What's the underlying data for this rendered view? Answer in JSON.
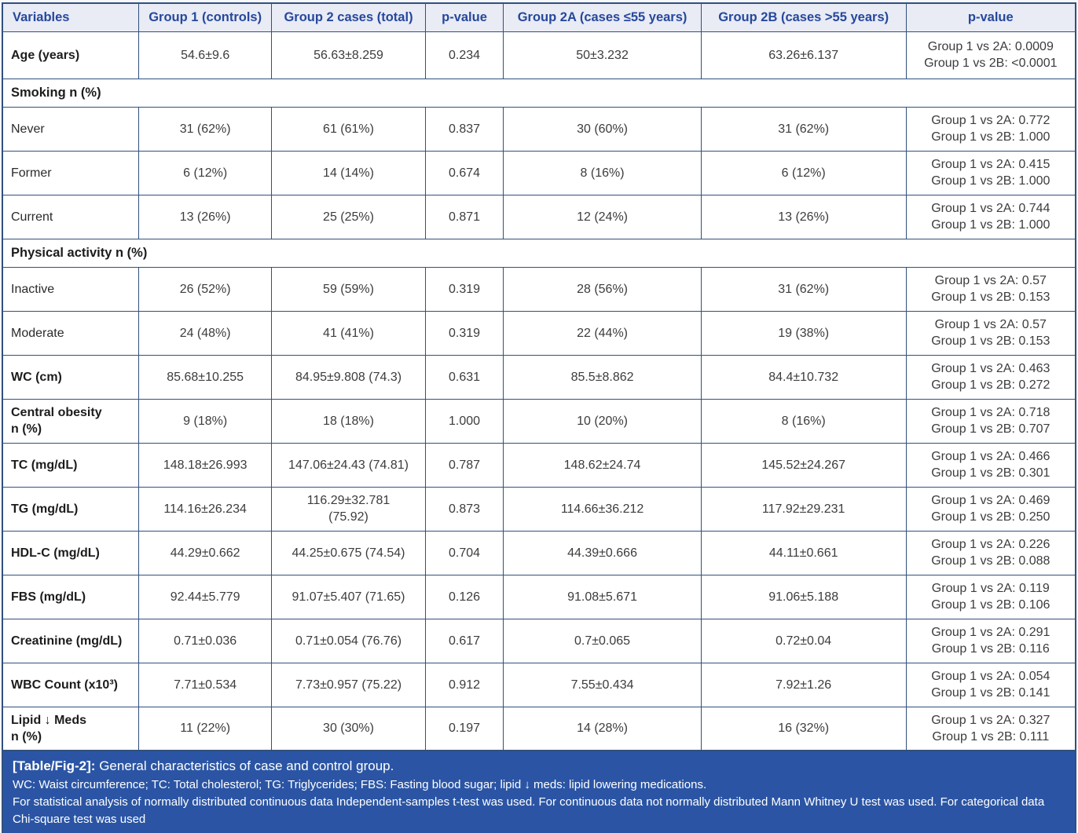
{
  "table": {
    "columns": [
      {
        "label": "Variables"
      },
      {
        "label": "Group 1 (controls)"
      },
      {
        "label": "Group 2 cases (total)"
      },
      {
        "label": "p-value"
      },
      {
        "label": "Group 2A (cases ≤55 years)"
      },
      {
        "label": "Group 2B (cases >55 years)"
      },
      {
        "label": "p-value"
      }
    ],
    "rows": [
      {
        "type": "data",
        "bold": true,
        "tall": true,
        "cells": [
          "Age (years)",
          "54.6±9.6",
          "56.63±8.259",
          "0.234",
          "50±3.232",
          "63.26±6.137",
          "Group 1 vs 2A: 0.0009\nGroup 1 vs 2B: <0.0001"
        ]
      },
      {
        "type": "section",
        "label": "Smoking n (%)"
      },
      {
        "type": "data",
        "bold": false,
        "cells": [
          "Never",
          "31 (62%)",
          "61 (61%)",
          "0.837",
          "30 (60%)",
          "31 (62%)",
          "Group 1 vs 2A: 0.772\nGroup 1 vs 2B: 1.000"
        ]
      },
      {
        "type": "data",
        "bold": false,
        "cells": [
          "Former",
          "6 (12%)",
          "14 (14%)",
          "0.674",
          "8 (16%)",
          "6 (12%)",
          "Group 1 vs 2A: 0.415\nGroup 1 vs 2B: 1.000"
        ]
      },
      {
        "type": "data",
        "bold": false,
        "cells": [
          "Current",
          "13 (26%)",
          "25 (25%)",
          "0.871",
          "12 (24%)",
          "13 (26%)",
          "Group 1 vs 2A: 0.744\nGroup 1 vs 2B: 1.000"
        ]
      },
      {
        "type": "section",
        "label": "Physical activity n (%)"
      },
      {
        "type": "data",
        "bold": false,
        "cells": [
          "Inactive",
          "26 (52%)",
          "59 (59%)",
          "0.319",
          "28 (56%)",
          "31 (62%)",
          "Group 1 vs 2A: 0.57\nGroup 1 vs 2B: 0.153"
        ]
      },
      {
        "type": "data",
        "bold": false,
        "cells": [
          "Moderate",
          "24 (48%)",
          "41 (41%)",
          "0.319",
          "22 (44%)",
          "19 (38%)",
          "Group 1 vs 2A: 0.57\nGroup 1 vs 2B: 0.153"
        ]
      },
      {
        "type": "data",
        "bold": true,
        "cells": [
          "WC (cm)",
          "85.68±10.255",
          "84.95±9.808 (74.3)",
          "0.631",
          "85.5±8.862",
          "84.4±10.732",
          "Group 1 vs 2A: 0.463\nGroup 1 vs 2B: 0.272"
        ]
      },
      {
        "type": "data",
        "bold": true,
        "cells": [
          "Central obesity\nn (%)",
          "9 (18%)",
          "18 (18%)",
          "1.000",
          "10 (20%)",
          "8 (16%)",
          "Group 1 vs 2A: 0.718\nGroup 1 vs 2B: 0.707"
        ]
      },
      {
        "type": "data",
        "bold": true,
        "cells": [
          "TC (mg/dL)",
          "148.18±26.993",
          "147.06±24.43 (74.81)",
          "0.787",
          "148.62±24.74",
          "145.52±24.267",
          "Group 1 vs 2A: 0.466\nGroup 1 vs 2B: 0.301"
        ]
      },
      {
        "type": "data",
        "bold": true,
        "cells": [
          "TG (mg/dL)",
          "114.16±26.234",
          "116.29±32.781\n(75.92)",
          "0.873",
          "114.66±36.212",
          "117.92±29.231",
          "Group 1 vs 2A: 0.469\nGroup 1 vs 2B: 0.250"
        ]
      },
      {
        "type": "data",
        "bold": true,
        "cells": [
          "HDL-C (mg/dL)",
          "44.29±0.662",
          "44.25±0.675 (74.54)",
          "0.704",
          "44.39±0.666",
          "44.11±0.661",
          "Group 1 vs 2A: 0.226\nGroup 1 vs 2B: 0.088"
        ]
      },
      {
        "type": "data",
        "bold": true,
        "cells": [
          "FBS (mg/dL)",
          "92.44±5.779",
          "91.07±5.407 (71.65)",
          "0.126",
          "91.08±5.671",
          "91.06±5.188",
          "Group 1 vs 2A: 0.119\nGroup 1 vs 2B: 0.106"
        ]
      },
      {
        "type": "data",
        "bold": true,
        "cells": [
          "Creatinine (mg/dL)",
          "0.71±0.036",
          "0.71±0.054 (76.76)",
          "0.617",
          "0.7±0.065",
          "0.72±0.04",
          "Group 1 vs 2A: 0.291\nGroup 1 vs 2B: 0.116"
        ]
      },
      {
        "type": "data",
        "bold": true,
        "cells": [
          "WBC Count (x10³)",
          "7.71±0.534",
          "7.73±0.957 (75.22)",
          "0.912",
          "7.55±0.434",
          "7.92±1.26",
          "Group 1 vs 2A: 0.054\nGroup 1 vs 2B: 0.141"
        ]
      },
      {
        "type": "data",
        "bold": true,
        "cells": [
          "Lipid ↓ Meds\nn (%)",
          "11 (22%)",
          "30 (30%)",
          "0.197",
          "14 (28%)",
          "16 (32%)",
          "Group 1 vs 2A: 0.327\nGroup 1 vs 2B: 0.111"
        ]
      }
    ]
  },
  "footer": {
    "caption_label": "[Table/Fig-2]:",
    "caption_text": "General characteristics of case and control group.",
    "abbreviations": "WC: Waist circumference; TC: Total cholesterol; TG: Triglycerides; FBS: Fasting blood sugar; lipid ↓ meds: lipid lowering medications.",
    "statistics": "For statistical analysis of normally distributed continuous data Independent-samples t-test was used. For continuous data not normally distributed Mann Whitney U test was used. For categorical data Chi-square test was used"
  },
  "colors": {
    "header_bg": "#e9ebf5",
    "header_text": "#26489c",
    "border": "#31507e",
    "footer_bg": "#2b55a4",
    "footer_text": "#ffffff"
  }
}
